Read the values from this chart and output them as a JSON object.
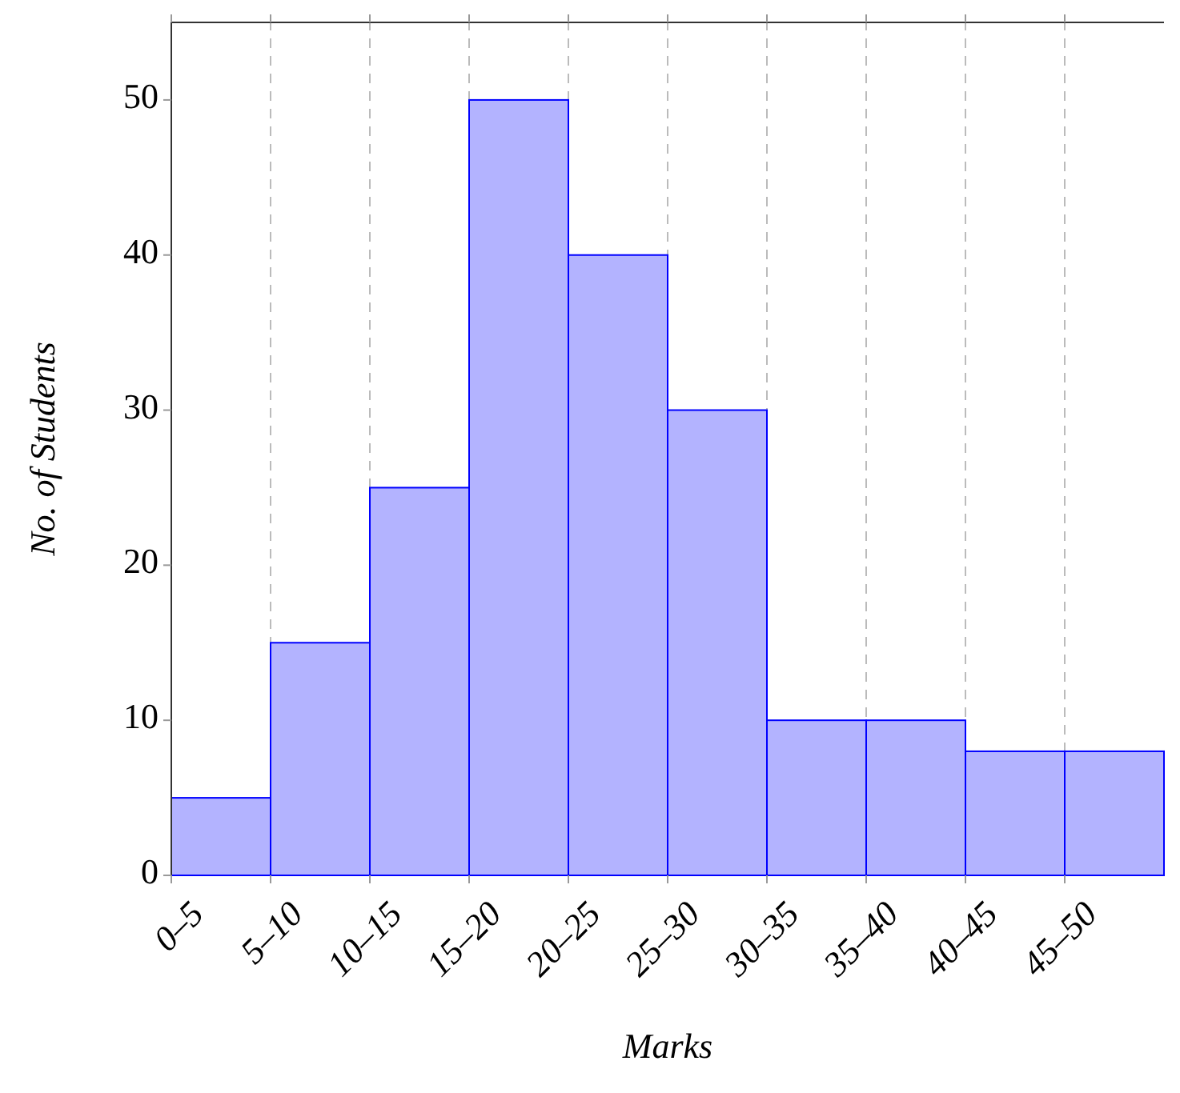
{
  "chart_data": {
    "type": "bar",
    "xlabel": "Marks",
    "ylabel": "No. of Students",
    "categories": [
      "0–5",
      "5–10",
      "10–15",
      "15–20",
      "20–25",
      "25–30",
      "30–35",
      "35–40",
      "40–45",
      "45–50"
    ],
    "values": [
      5,
      15,
      25,
      50,
      40,
      30,
      10,
      10,
      8,
      8
    ],
    "color": "#b3b3ff",
    "ylim": [
      0,
      55
    ],
    "yticks": [
      0,
      10,
      20,
      30,
      40,
      50
    ],
    "grid": "x",
    "line_style": "dashed"
  }
}
